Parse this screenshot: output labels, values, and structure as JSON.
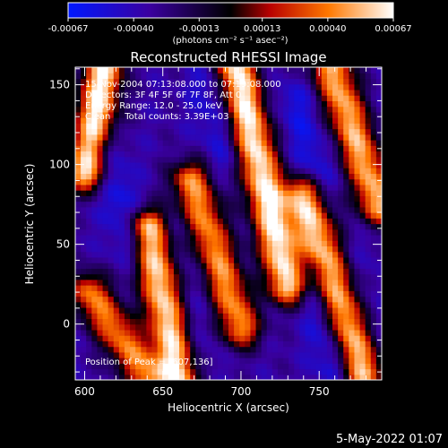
{
  "colorbar": {
    "tick_labels": [
      "-0.00067",
      "-0.00040",
      "-0.00013",
      "0.00013",
      "0.00040",
      "0.00067"
    ],
    "tick_values": [
      -0.00067,
      -0.0004,
      -0.00013,
      0.00013,
      0.0004,
      0.00067
    ],
    "range": [
      -0.00067,
      0.00067
    ],
    "unit_label": "(photons cm⁻² s⁻¹ asec⁻²)",
    "colors": [
      "#0018ff",
      "#3a00a0",
      "#000000",
      "#b80000",
      "#ff7800",
      "#ffffff"
    ]
  },
  "chart_data": {
    "type": "heatmap",
    "title": "Reconstructed RHESSI Image",
    "xlabel": "Heliocentric X (arcsec)",
    "ylabel": "Heliocentric Y (arcsec)",
    "xlim": [
      594,
      790
    ],
    "ylim": [
      -35,
      161
    ],
    "x_ticks": [
      600,
      650,
      700,
      750
    ],
    "y_ticks": [
      0,
      50,
      100,
      150
    ],
    "annotations": [
      "15-Nov-2004 07:13:08.000 to 07:19:08.000",
      "Detectors: 3F 4F 5F 6F 7F 8F, Att 0",
      "Energy Range: 12.0 - 25.0 keV",
      "Clean     Total counts: 3.39E+03"
    ],
    "peak_label": "Position of Peak = [607,136]",
    "peak_position": [
      607,
      136
    ],
    "stripes": [
      {
        "start": [
          601,
          96
        ],
        "end": [
          612,
          160
        ],
        "value": 0.00067
      },
      {
        "start": [
          641,
          60
        ],
        "end": [
          660,
          -32
        ],
        "value": 0.00062
      },
      {
        "start": [
          668,
          90
        ],
        "end": [
          700,
          -2
        ],
        "value": 0.00045
      },
      {
        "start": [
          697,
          160
        ],
        "end": [
          730,
          25
        ],
        "value": 0.00067
      },
      {
        "start": [
          740,
          80
        ],
        "end": [
          778,
          -30
        ],
        "value": 0.00058
      },
      {
        "start": [
          758,
          160
        ],
        "end": [
          788,
          75
        ],
        "value": 0.00052
      },
      {
        "start": [
          603,
          20
        ],
        "end": [
          640,
          -32
        ],
        "value": 0.0004
      }
    ],
    "troughs": [
      {
        "start": [
          613,
          110
        ],
        "end": [
          630,
          50
        ],
        "value": -0.00058
      },
      {
        "start": [
          678,
          150
        ],
        "end": [
          690,
          105
        ],
        "value": -0.00052
      },
      {
        "start": [
          735,
          140
        ],
        "end": [
          750,
          90
        ],
        "value": -0.00055
      },
      {
        "start": [
          745,
          30
        ],
        "end": [
          760,
          -25
        ],
        "value": -0.0006
      },
      {
        "start": [
          660,
          60
        ],
        "end": [
          675,
          -20
        ],
        "value": -0.00045
      },
      {
        "start": [
          778,
          50
        ],
        "end": [
          786,
          0
        ],
        "value": -0.0004
      }
    ]
  },
  "footer": {
    "timestamp": "5-May-2022 01:07"
  }
}
